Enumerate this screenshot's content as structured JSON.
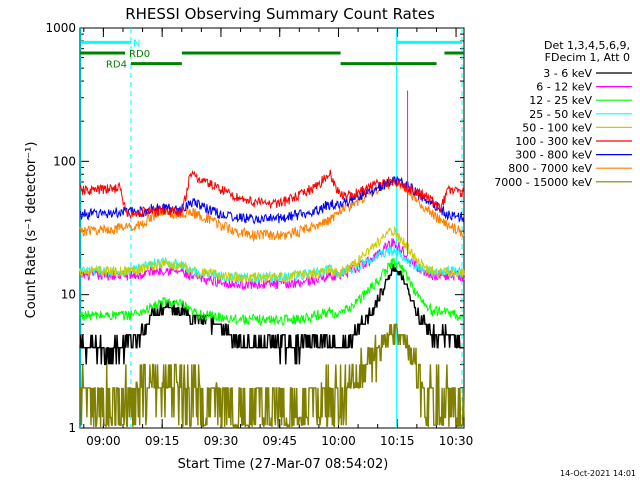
{
  "chart_data": {
    "type": "line",
    "title": "RHESSI Observing Summary Count Rates",
    "xlabel": "Start Time (27-Mar-07 08:54:02)",
    "ylabel": "Count Rate (s⁻¹ detector⁻¹)",
    "y_scale": "log",
    "ylim": [
      1,
      1000
    ],
    "y_ticks": [
      {
        "value": 1,
        "label": "1"
      },
      {
        "value": 10,
        "label": "10"
      },
      {
        "value": 100,
        "label": "100"
      },
      {
        "value": 1000,
        "label": "1000"
      }
    ],
    "x_unit": "minutes after 08:54:02",
    "xlim": [
      0,
      98
    ],
    "x_ticks": [
      {
        "value": 5.97,
        "label": "09:00"
      },
      {
        "value": 20.97,
        "label": "09:15"
      },
      {
        "value": 35.97,
        "label": "09:30"
      },
      {
        "value": 50.97,
        "label": "09:45"
      },
      {
        "value": 65.97,
        "label": "10:00"
      },
      {
        "value": 80.97,
        "label": "10:15"
      },
      {
        "value": 95.97,
        "label": "10:30"
      }
    ],
    "grid": false,
    "legend_position": "right",
    "legend_header": [
      "Det 1,3,4,5,6,9,",
      "FDecim 1, Att 0"
    ],
    "series": [
      {
        "name": "3 - 6 keV",
        "color": "#000000",
        "x": [
          0,
          8,
          12,
          16,
          18,
          22,
          24,
          26,
          28,
          32,
          36,
          40,
          44,
          48,
          52,
          56,
          60,
          64,
          66,
          70,
          74,
          78,
          80,
          82,
          84,
          86,
          88,
          90,
          94,
          96,
          98
        ],
        "y": [
          4,
          4,
          4.2,
          5,
          7,
          8.5,
          8,
          8,
          7,
          6.5,
          5.5,
          4.5,
          4.2,
          4.2,
          4.2,
          4.2,
          4.3,
          4.5,
          4,
          5,
          7,
          12,
          16,
          14,
          10,
          7,
          6,
          5,
          5,
          4.5,
          4
        ]
      },
      {
        "name": "6 - 12 keV",
        "color": "#ff00ff",
        "x": [
          0,
          8,
          12,
          16,
          18,
          22,
          24,
          26,
          28,
          32,
          36,
          40,
          44,
          48,
          52,
          56,
          60,
          64,
          66,
          70,
          74,
          78,
          80,
          82,
          84,
          86,
          88,
          90,
          94,
          96,
          98
        ],
        "y": [
          14,
          14,
          14,
          14,
          15,
          15.5,
          15,
          15,
          13.5,
          13,
          12.5,
          12,
          12,
          12,
          12,
          12.5,
          13,
          14,
          14,
          15.5,
          18,
          23,
          25,
          22,
          19,
          16,
          15,
          14,
          14,
          14,
          13.5
        ]
      },
      {
        "name": "12 - 25 keV",
        "color": "#00ff00",
        "x": [
          0,
          8,
          12,
          16,
          18,
          22,
          24,
          26,
          28,
          32,
          36,
          40,
          44,
          48,
          52,
          56,
          60,
          64,
          66,
          70,
          74,
          78,
          80,
          82,
          84,
          86,
          88,
          90,
          94,
          96,
          98
        ],
        "y": [
          7,
          7,
          7,
          7.5,
          8,
          9,
          8.5,
          8.5,
          7.5,
          7,
          6.8,
          6.6,
          6.5,
          6.5,
          6.5,
          6.6,
          7,
          7.5,
          7,
          8.5,
          11,
          15,
          18,
          16,
          13,
          10,
          8.5,
          7.5,
          7.5,
          7,
          6.5
        ]
      },
      {
        "name": "25 - 50 keV",
        "color": "#00ffff",
        "x": [
          0,
          8,
          12,
          16,
          18,
          22,
          24,
          26,
          28,
          32,
          36,
          40,
          44,
          48,
          52,
          56,
          60,
          64,
          66,
          70,
          74,
          78,
          80,
          82,
          84,
          86,
          88,
          90,
          94,
          96,
          98
        ],
        "y": [
          15,
          15,
          15,
          16,
          17,
          17.5,
          17,
          17,
          15,
          14.5,
          14,
          13.5,
          13.5,
          13.5,
          13.5,
          14,
          14.5,
          15.5,
          14.5,
          16,
          18,
          21,
          21,
          20,
          18,
          16,
          15,
          15,
          15,
          15,
          14.5
        ]
      },
      {
        "name": "50 - 100 keV",
        "color": "#cccc00",
        "x": [
          0,
          8,
          12,
          16,
          18,
          22,
          24,
          26,
          28,
          32,
          36,
          40,
          44,
          48,
          52,
          56,
          60,
          64,
          66,
          70,
          74,
          78,
          80,
          82,
          84,
          86,
          88,
          90,
          94,
          96,
          98
        ],
        "y": [
          15,
          15,
          15,
          16,
          16.5,
          17,
          16.5,
          16.5,
          15,
          14.5,
          14,
          13.5,
          13.5,
          13.5,
          13.5,
          14,
          14.5,
          15.5,
          14.5,
          17,
          22,
          28,
          30,
          26,
          22,
          18,
          16,
          15,
          15,
          15,
          14.5
        ]
      },
      {
        "name": "100 - 300 keV",
        "color": "#ff0000",
        "x": [
          0,
          8,
          10,
          12,
          14,
          16,
          18,
          22,
          24,
          26,
          28,
          30,
          32,
          36,
          40,
          44,
          48,
          52,
          56,
          60,
          64,
          66,
          68,
          72,
          76,
          78,
          80,
          82,
          84,
          86,
          88,
          90,
          92,
          94,
          96,
          98
        ],
        "y": [
          60,
          62,
          65,
          40,
          40,
          42,
          42,
          43,
          42,
          40,
          78,
          75,
          70,
          62,
          54,
          50,
          48,
          50,
          55,
          65,
          80,
          58,
          55,
          60,
          68,
          70,
          72,
          68,
          62,
          58,
          55,
          50,
          45,
          60,
          60,
          58
        ]
      },
      {
        "name": "300 - 800 keV",
        "color": "#0000ff",
        "x": [
          0,
          8,
          12,
          16,
          18,
          22,
          24,
          26,
          28,
          32,
          36,
          40,
          44,
          48,
          52,
          56,
          60,
          64,
          66,
          70,
          74,
          78,
          80,
          82,
          84,
          86,
          88,
          90,
          92,
          94,
          96,
          98
        ],
        "y": [
          40,
          41,
          42,
          42,
          44,
          45,
          44,
          44,
          50,
          45,
          40,
          38,
          37,
          37,
          38,
          40,
          43,
          48,
          48,
          52,
          60,
          68,
          72,
          70,
          65,
          58,
          52,
          48,
          44,
          40,
          39,
          38
        ]
      },
      {
        "name": "800 - 7000 keV",
        "color": "#ff8000",
        "x": [
          0,
          8,
          12,
          16,
          18,
          22,
          24,
          26,
          28,
          32,
          36,
          40,
          44,
          48,
          52,
          56,
          60,
          64,
          66,
          70,
          74,
          78,
          80,
          82,
          84,
          86,
          88,
          90,
          92,
          94,
          96,
          98
        ],
        "y": [
          30,
          31,
          32,
          34,
          38,
          42,
          40,
          40,
          42,
          38,
          33,
          30,
          28,
          28,
          28,
          30,
          33,
          37,
          42,
          48,
          58,
          66,
          70,
          68,
          60,
          52,
          45,
          40,
          36,
          33,
          31,
          29
        ]
      },
      {
        "name": "7000 - 15000 keV",
        "color": "#808000",
        "x": [
          0,
          6,
          10,
          14,
          18,
          22,
          24,
          26,
          28,
          32,
          36,
          40,
          44,
          48,
          52,
          56,
          60,
          64,
          66,
          70,
          74,
          78,
          80,
          82,
          84,
          86,
          88,
          90,
          94,
          96,
          98
        ],
        "y": [
          1.8,
          1.7,
          1.9,
          2.1,
          2.3,
          2.4,
          2.2,
          2.2,
          2,
          1.8,
          1.7,
          1.6,
          1.6,
          1.6,
          1.6,
          1.6,
          1.7,
          1.9,
          1.8,
          2.5,
          3.4,
          4.8,
          6,
          5,
          3.8,
          2.8,
          2.2,
          1.9,
          1.7,
          1.7,
          1.6
        ]
      }
    ],
    "spike": {
      "series": "6 - 12 keV",
      "x": 83.6,
      "y": 340
    },
    "markers": {
      "vertical_lines": [
        {
          "x": 0.2,
          "style": "solid",
          "color": "#00ffff"
        },
        {
          "x": 13,
          "style": "dashed",
          "color": "#00ffff"
        },
        {
          "x": 80.8,
          "style": "solid",
          "color": "#00ffff"
        },
        {
          "x": 97.5,
          "style": "dashed",
          "color": "#00ffff"
        }
      ],
      "flag_bars": [
        {
          "label": "N",
          "color": "#00ffff",
          "segments": [
            [
              0.2,
              13
            ],
            [
              80.8,
              97.5
            ]
          ],
          "level": 780
        },
        {
          "label": "RD0",
          "color": "#008000",
          "segments": [
            [
              0,
              11.5
            ],
            [
              26,
              66.5
            ],
            [
              93,
              98
            ]
          ],
          "level": 650
        },
        {
          "label": "RD4",
          "color": "#008000",
          "segments": [
            [
              13,
              26
            ],
            [
              66.5,
              91
            ]
          ],
          "level": 540
        }
      ]
    }
  },
  "footer": {
    "timestamp": "14-Oct-2021 14:01"
  }
}
